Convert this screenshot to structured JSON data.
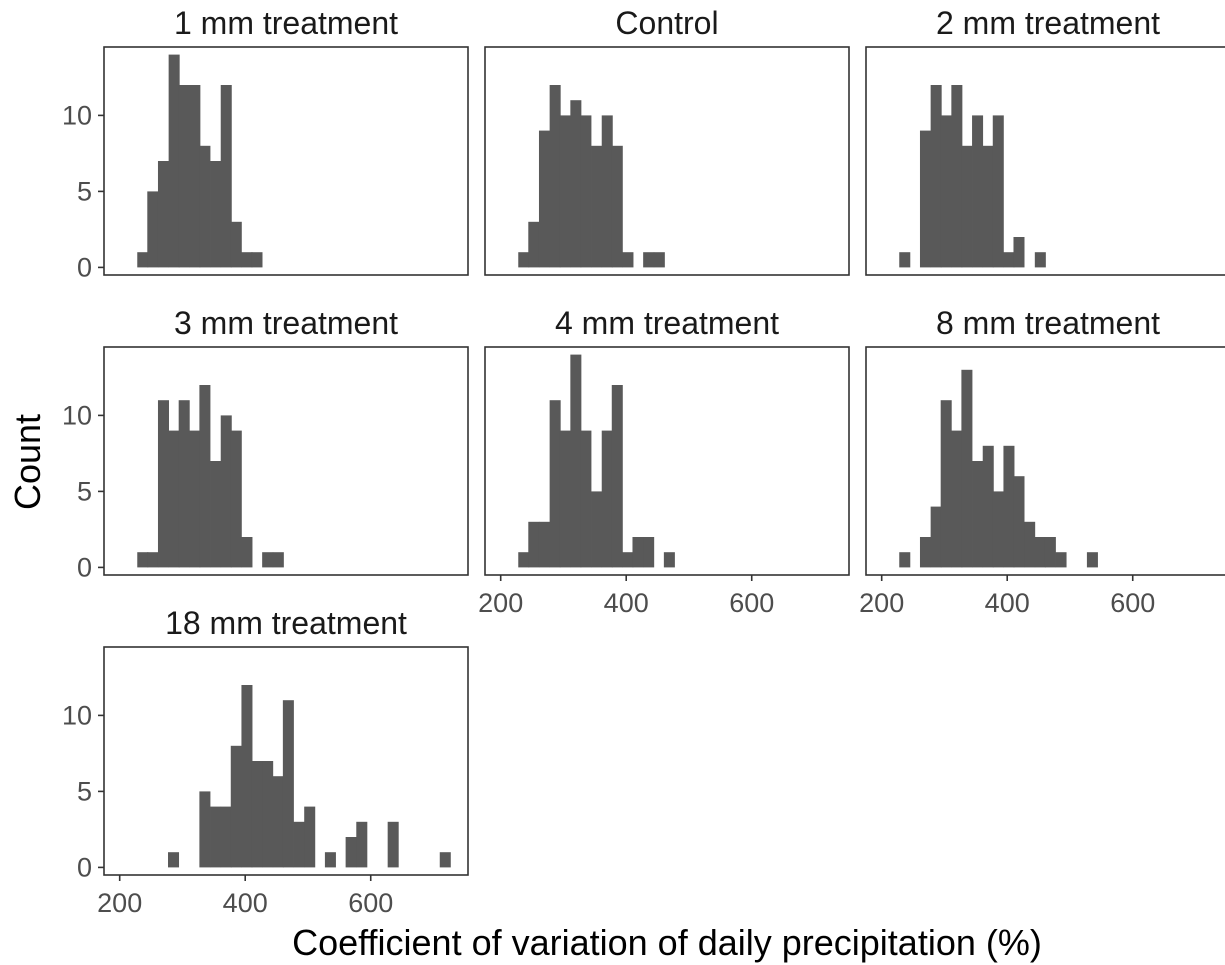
{
  "chart_data": {
    "type": "bar",
    "subtype": "faceted-histogram",
    "xlabel": "Coefficient of variation of daily precipitation (%)",
    "ylabel": "Count",
    "xlim": [
      175,
      755
    ],
    "ylim": [
      -0.5,
      14.5
    ],
    "xticks": [
      200,
      400,
      600
    ],
    "yticks": [
      0,
      5,
      10
    ],
    "bin_width": 16.6,
    "bar_color": "#595959",
    "panels": [
      {
        "title": "1 mm treatment",
        "bins": [
          {
            "x0": 228,
            "count": 1
          },
          {
            "x0": 244,
            "count": 5
          },
          {
            "x0": 261,
            "count": 7
          },
          {
            "x0": 278,
            "count": 14
          },
          {
            "x0": 294,
            "count": 12
          },
          {
            "x0": 311,
            "count": 12
          },
          {
            "x0": 327,
            "count": 8
          },
          {
            "x0": 344,
            "count": 7
          },
          {
            "x0": 361,
            "count": 12
          },
          {
            "x0": 377,
            "count": 3
          },
          {
            "x0": 394,
            "count": 1
          },
          {
            "x0": 410,
            "count": 1
          }
        ]
      },
      {
        "title": "Control",
        "bins": [
          {
            "x0": 228,
            "count": 1
          },
          {
            "x0": 244,
            "count": 3
          },
          {
            "x0": 261,
            "count": 9
          },
          {
            "x0": 278,
            "count": 12
          },
          {
            "x0": 294,
            "count": 10
          },
          {
            "x0": 311,
            "count": 11
          },
          {
            "x0": 327,
            "count": 10
          },
          {
            "x0": 344,
            "count": 8
          },
          {
            "x0": 361,
            "count": 10
          },
          {
            "x0": 377,
            "count": 8
          },
          {
            "x0": 394,
            "count": 1
          },
          {
            "x0": 427,
            "count": 1
          },
          {
            "x0": 444,
            "count": 1
          }
        ]
      },
      {
        "title": "2 mm treatment",
        "bins": [
          {
            "x0": 228,
            "count": 1
          },
          {
            "x0": 261,
            "count": 9
          },
          {
            "x0": 278,
            "count": 12
          },
          {
            "x0": 294,
            "count": 10
          },
          {
            "x0": 311,
            "count": 12
          },
          {
            "x0": 327,
            "count": 8
          },
          {
            "x0": 344,
            "count": 10
          },
          {
            "x0": 361,
            "count": 8
          },
          {
            "x0": 377,
            "count": 10
          },
          {
            "x0": 394,
            "count": 1
          },
          {
            "x0": 410,
            "count": 2
          },
          {
            "x0": 444,
            "count": 1
          }
        ]
      },
      {
        "title": "3 mm treatment",
        "bins": [
          {
            "x0": 228,
            "count": 1
          },
          {
            "x0": 244,
            "count": 1
          },
          {
            "x0": 261,
            "count": 11
          },
          {
            "x0": 278,
            "count": 9
          },
          {
            "x0": 294,
            "count": 11
          },
          {
            "x0": 311,
            "count": 9
          },
          {
            "x0": 327,
            "count": 12
          },
          {
            "x0": 344,
            "count": 7
          },
          {
            "x0": 361,
            "count": 10
          },
          {
            "x0": 377,
            "count": 9
          },
          {
            "x0": 394,
            "count": 2
          },
          {
            "x0": 427,
            "count": 1
          },
          {
            "x0": 444,
            "count": 1
          }
        ]
      },
      {
        "title": "4 mm treatment",
        "bins": [
          {
            "x0": 228,
            "count": 1
          },
          {
            "x0": 244,
            "count": 3
          },
          {
            "x0": 261,
            "count": 3
          },
          {
            "x0": 278,
            "count": 11
          },
          {
            "x0": 294,
            "count": 9
          },
          {
            "x0": 311,
            "count": 14
          },
          {
            "x0": 327,
            "count": 9
          },
          {
            "x0": 344,
            "count": 5
          },
          {
            "x0": 361,
            "count": 9
          },
          {
            "x0": 377,
            "count": 12
          },
          {
            "x0": 394,
            "count": 1
          },
          {
            "x0": 410,
            "count": 2
          },
          {
            "x0": 427,
            "count": 2
          },
          {
            "x0": 460,
            "count": 1
          }
        ]
      },
      {
        "title": "8 mm treatment",
        "bins": [
          {
            "x0": 228,
            "count": 1
          },
          {
            "x0": 261,
            "count": 2
          },
          {
            "x0": 278,
            "count": 4
          },
          {
            "x0": 294,
            "count": 11
          },
          {
            "x0": 311,
            "count": 9
          },
          {
            "x0": 327,
            "count": 13
          },
          {
            "x0": 344,
            "count": 7
          },
          {
            "x0": 361,
            "count": 8
          },
          {
            "x0": 377,
            "count": 5
          },
          {
            "x0": 394,
            "count": 8
          },
          {
            "x0": 410,
            "count": 6
          },
          {
            "x0": 427,
            "count": 3
          },
          {
            "x0": 444,
            "count": 2
          },
          {
            "x0": 460,
            "count": 2
          },
          {
            "x0": 477,
            "count": 1
          },
          {
            "x0": 527,
            "count": 1
          }
        ]
      },
      {
        "title": "18 mm treatment",
        "bins": [
          {
            "x0": 277,
            "count": 1
          },
          {
            "x0": 327,
            "count": 5
          },
          {
            "x0": 344,
            "count": 4
          },
          {
            "x0": 361,
            "count": 4
          },
          {
            "x0": 377,
            "count": 8
          },
          {
            "x0": 394,
            "count": 12
          },
          {
            "x0": 410,
            "count": 7
          },
          {
            "x0": 427,
            "count": 7
          },
          {
            "x0": 444,
            "count": 6
          },
          {
            "x0": 460,
            "count": 11
          },
          {
            "x0": 477,
            "count": 3
          },
          {
            "x0": 494,
            "count": 4
          },
          {
            "x0": 527,
            "count": 1
          },
          {
            "x0": 560,
            "count": 2
          },
          {
            "x0": 577,
            "count": 3
          },
          {
            "x0": 627,
            "count": 3
          },
          {
            "x0": 710,
            "count": 1
          }
        ]
      }
    ]
  }
}
